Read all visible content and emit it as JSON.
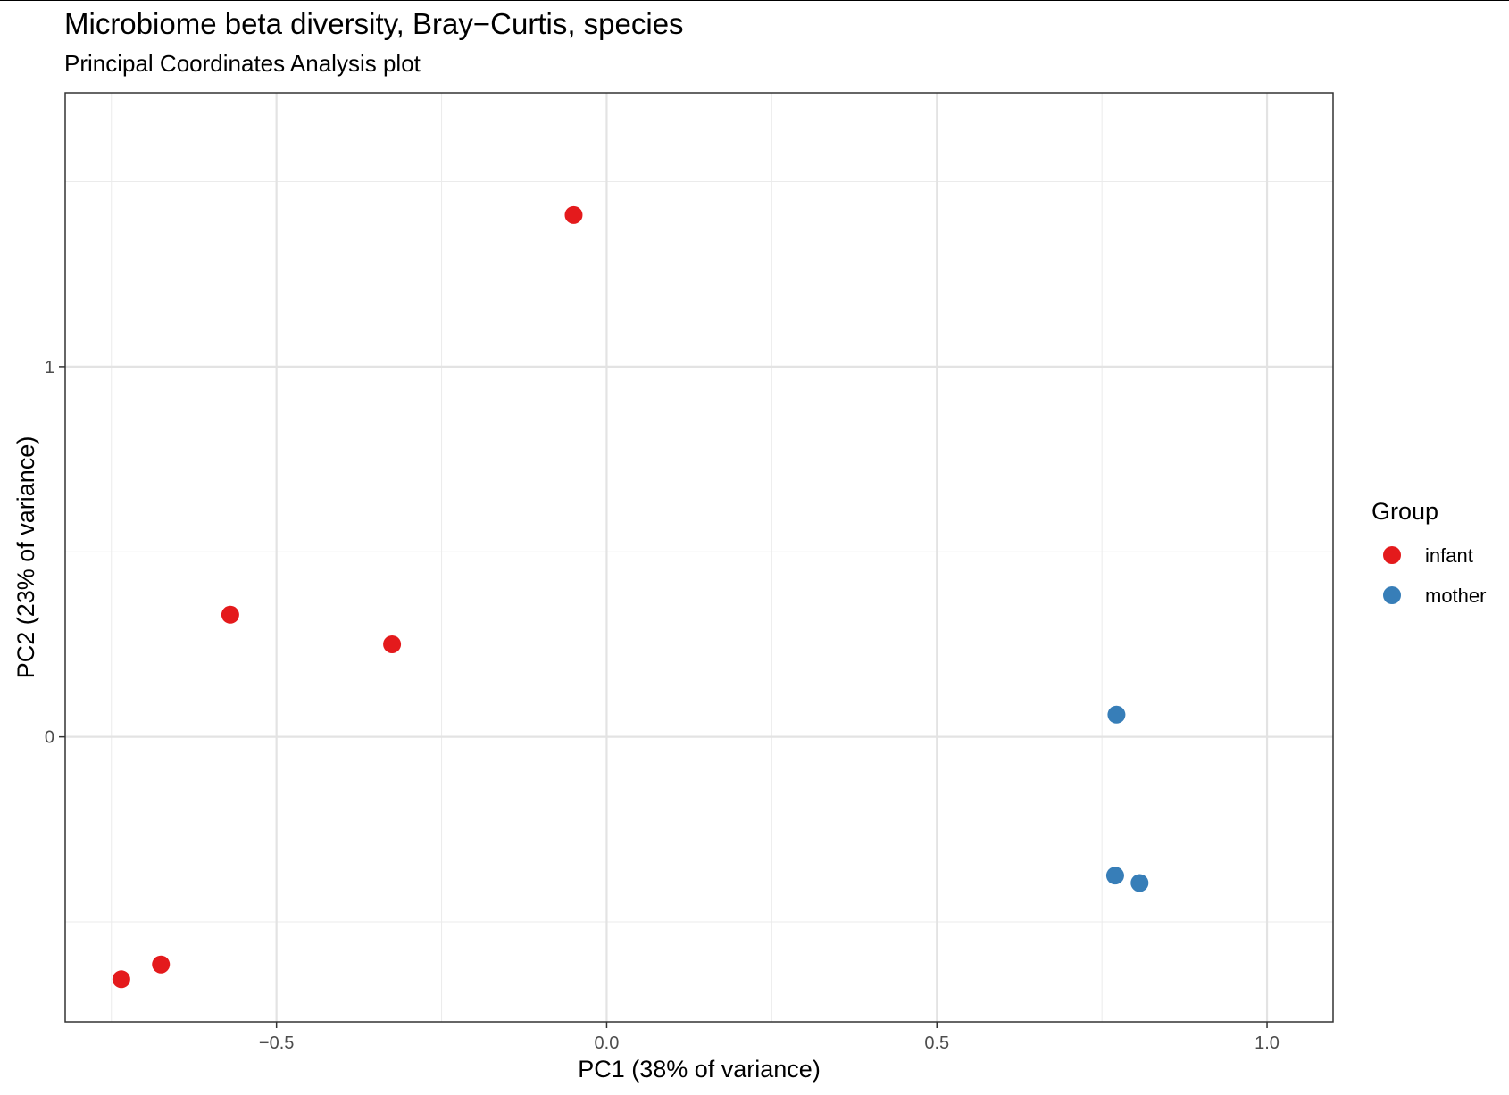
{
  "chart_data": {
    "type": "scatter",
    "title": "Microbiome beta diversity, Bray−Curtis, species",
    "subtitle": "Principal Coordinates Analysis plot",
    "xlabel": "PC1 (38% of variance)",
    "ylabel": "PC2 (23% of variance)",
    "xlim": [
      -0.82,
      1.1
    ],
    "ylim": [
      -0.77,
      1.74
    ],
    "x_ticks": [
      {
        "value": -0.5,
        "label": "−0.5"
      },
      {
        "value": 0.0,
        "label": "0.0"
      },
      {
        "value": 0.5,
        "label": "0.5"
      },
      {
        "value": 1.0,
        "label": "1.0"
      }
    ],
    "x_minor_grid": [
      -0.75,
      -0.25,
      0.25,
      0.75
    ],
    "y_ticks": [
      {
        "value": 0,
        "label": "0"
      },
      {
        "value": 1,
        "label": "1"
      }
    ],
    "y_minor_grid": [
      -0.5,
      0.5,
      1.5
    ],
    "grid": true,
    "legend_title": "Group",
    "legend_position": "right",
    "series": [
      {
        "name": "infant",
        "color": "#e41a1c",
        "points": [
          {
            "x": -0.05,
            "y": 1.41
          },
          {
            "x": -0.57,
            "y": 0.33
          },
          {
            "x": -0.325,
            "y": 0.25
          },
          {
            "x": -0.675,
            "y": -0.615
          },
          {
            "x": -0.735,
            "y": -0.655
          }
        ]
      },
      {
        "name": "mother",
        "color": "#377eb8",
        "points": [
          {
            "x": 0.772,
            "y": 0.06
          },
          {
            "x": 0.77,
            "y": -0.375
          },
          {
            "x": 0.807,
            "y": -0.395
          }
        ]
      }
    ]
  }
}
